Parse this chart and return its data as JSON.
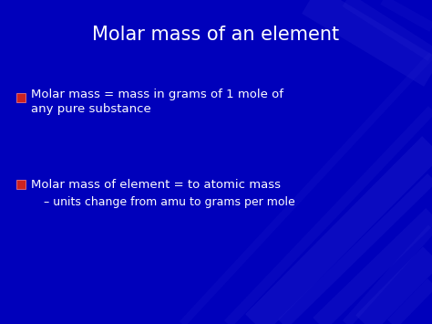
{
  "title": "Molar mass of an element",
  "title_color": "#FFFFFF",
  "title_fontsize": 15,
  "bg_color": "#0000BB",
  "bullet_color": "#CC2222",
  "bullet_highlight": "#FF8888",
  "text_color": "#FFFFFF",
  "bullet1_line1": "Molar mass = mass in grams of 1 mole of",
  "bullet1_line2": "any pure substance",
  "bullet2_line1": "Molar mass of element = to atomic mass",
  "sub_bullet": "– units change from amu to grams per mole",
  "bullet_fontsize": 9.5,
  "sub_fontsize": 9.0,
  "stripe_color": "#2222CC",
  "stripe_color2": "#1111AA",
  "stripe_alpha": 0.55
}
